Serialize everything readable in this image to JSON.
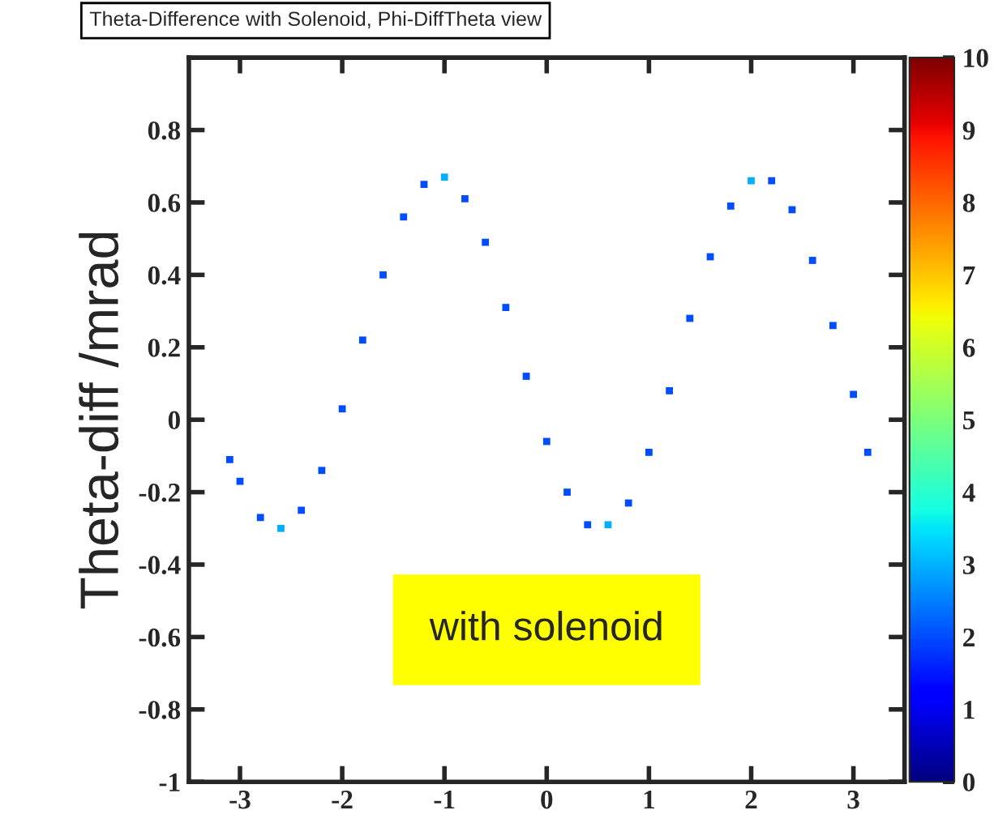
{
  "chart_data": {
    "type": "scatter",
    "title": "Theta-Difference with Solenoid, Phi-DiffTheta view",
    "ylabel": "Theta-diff /mrad",
    "x": [
      -3.1,
      -3.0,
      -2.8,
      -2.6,
      -2.4,
      -2.2,
      -2.0,
      -1.8,
      -1.6,
      -1.4,
      -1.2,
      -1.0,
      -0.8,
      -0.6,
      -0.4,
      -0.2,
      0.0,
      0.2,
      0.4,
      0.6,
      0.8,
      1.0,
      1.2,
      1.4,
      1.6,
      1.8,
      2.0,
      2.2,
      2.4,
      2.6,
      2.8,
      3.0,
      3.14
    ],
    "values": [
      -0.11,
      -0.17,
      -0.27,
      -0.3,
      -0.25,
      -0.14,
      0.03,
      0.22,
      0.4,
      0.56,
      0.65,
      0.67,
      0.61,
      0.49,
      0.31,
      0.12,
      -0.06,
      -0.2,
      -0.29,
      -0.29,
      -0.23,
      -0.09,
      0.08,
      0.28,
      0.45,
      0.59,
      0.66,
      0.66,
      0.58,
      0.44,
      0.26,
      0.07,
      -0.09
    ],
    "cvalues": [
      2,
      2,
      2,
      3,
      2,
      2,
      2,
      2,
      2,
      2,
      2,
      3,
      2,
      2,
      2,
      2,
      2,
      2,
      2,
      3,
      2,
      2,
      2,
      2,
      2,
      2,
      3,
      2,
      2,
      2,
      2,
      2,
      2
    ],
    "clim": [
      0,
      10
    ],
    "cticks": [
      0,
      1,
      2,
      3,
      4,
      5,
      6,
      7,
      8,
      9,
      10
    ],
    "xlim": [
      -3.5,
      3.5
    ],
    "xticks": [
      -3,
      -2,
      -1,
      0,
      1,
      2,
      3
    ],
    "ylim": [
      -1,
      1
    ],
    "yticks": [
      -1,
      -0.8,
      -0.6,
      -0.4,
      -0.2,
      0,
      0.2,
      0.4,
      0.6,
      0.8
    ],
    "grid": false,
    "annotations": [
      "with solenoid"
    ]
  }
}
